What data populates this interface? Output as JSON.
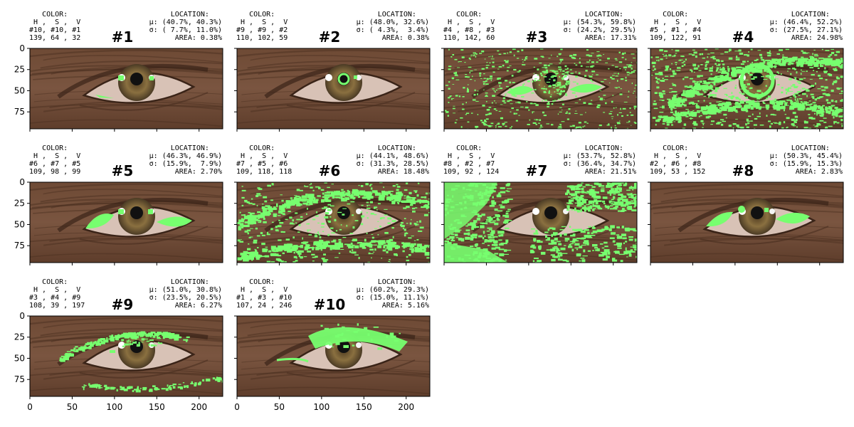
{
  "chart_data": {
    "type": "image-grid",
    "axes": {
      "xlim": [
        0,
        228
      ],
      "ylim": [
        95,
        0
      ],
      "xticks": [
        0,
        50,
        100,
        150,
        200
      ],
      "yticks": [
        0,
        25,
        50,
        75
      ]
    },
    "mask_color": "#77ff6f",
    "header_labels": {
      "color": "COLOR:",
      "channels": " H ,  S ,  V",
      "location": "LOCATION:"
    },
    "panels": [
      {
        "title": "#1",
        "ranks": "#10, #10, #1",
        "hsv": "139, 64 , 32",
        "mu": "μ: (40.7%, 40.3%)",
        "sigma": "σ: ( 7.7%, 11.0%)",
        "area": "AREA: 0.38%"
      },
      {
        "title": "#2",
        "ranks": "#9 , #9 , #2",
        "hsv": "110, 102, 59",
        "mu": "μ: (48.0%, 32.6%)",
        "sigma": "σ: ( 4.3%,  3.4%)",
        "area": "AREA: 0.38%"
      },
      {
        "title": "#3",
        "ranks": "#4 , #8 , #3",
        "hsv": "110, 142, 60",
        "mu": "μ: (54.3%, 59.8%)",
        "sigma": "σ: (24.2%, 29.5%)",
        "area": "AREA: 17.31%"
      },
      {
        "title": "#4",
        "ranks": "#5 , #1 , #4",
        "hsv": "109, 122, 91",
        "mu": "μ: (46.4%, 52.2%)",
        "sigma": "σ: (27.5%, 27.1%)",
        "area": "AREA: 24.98%"
      },
      {
        "title": "#5",
        "ranks": "#6 , #7 , #5",
        "hsv": "109, 98 , 99",
        "mu": "μ: (46.3%, 46.9%)",
        "sigma": "σ: (15.9%,  7.9%)",
        "area": "AREA: 2.70%"
      },
      {
        "title": "#6",
        "ranks": "#7 , #5 , #6",
        "hsv": "109, 118, 118",
        "mu": "μ: (44.1%, 48.6%)",
        "sigma": "σ: (31.3%, 28.5%)",
        "area": "AREA: 18.48%"
      },
      {
        "title": "#7",
        "ranks": "#8 , #2 , #7",
        "hsv": "109, 92 , 124",
        "mu": "μ: (53.7%, 52.8%)",
        "sigma": "σ: (36.4%, 34.7%)",
        "area": "AREA: 21.51%"
      },
      {
        "title": "#8",
        "ranks": "#2 , #6 , #8",
        "hsv": "109, 53 , 152",
        "mu": "μ: (50.3%, 45.4%)",
        "sigma": "σ: (15.9%, 15.3%)",
        "area": "AREA: 2.83%"
      },
      {
        "title": "#9",
        "ranks": "#3 , #4 , #9",
        "hsv": "108, 39 , 197",
        "mu": "μ: (51.0%, 30.8%)",
        "sigma": "σ: (23.5%, 20.5%)",
        "area": "AREA: 6.27%"
      },
      {
        "title": "#10",
        "ranks": "#1 , #3 , #10",
        "hsv": "107, 24 , 246",
        "mu": "μ: (60.2%, 29.3%)",
        "sigma": "σ: (15.0%, 11.1%)",
        "area": "AREA: 5.16%"
      }
    ]
  }
}
